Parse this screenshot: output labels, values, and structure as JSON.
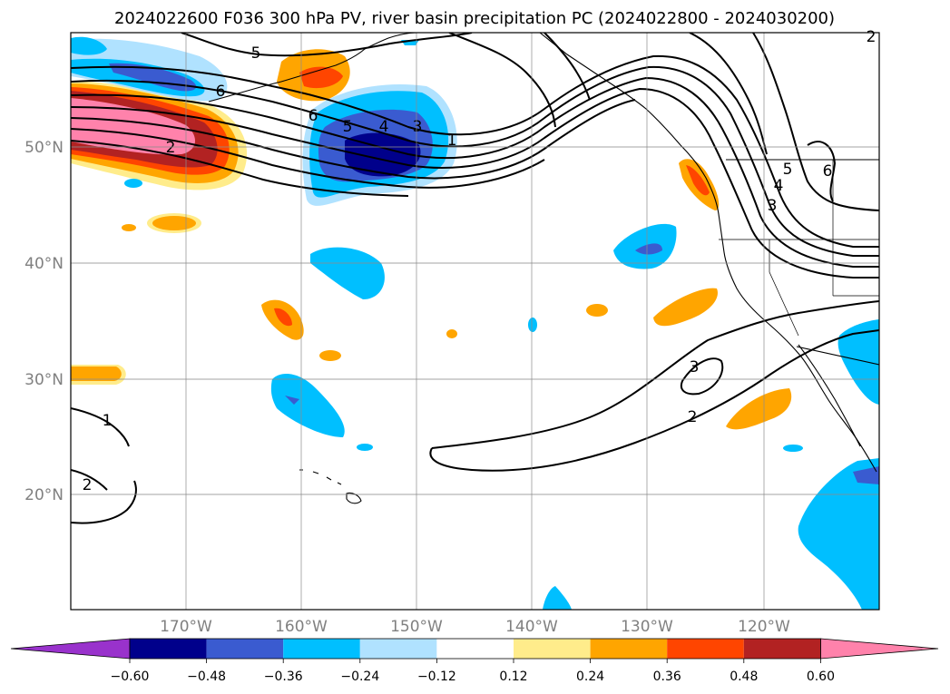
{
  "title": "2024022600 F036 300 hPa PV, river basin precipitation PC (2024022800 - 2024030200)",
  "map": {
    "lat_labels": [
      "50°N",
      "40°N",
      "30°N",
      "20°N"
    ],
    "lon_labels": [
      "170°W",
      "160°W",
      "150°W",
      "140°W",
      "130°W",
      "120°W"
    ],
    "contour_labels": [
      "5",
      "6",
      "6",
      "5",
      "4",
      "3",
      "1",
      "2",
      "2",
      "5",
      "4",
      "3",
      "6",
      "3",
      "2",
      "1",
      "2"
    ]
  },
  "colorbar": {
    "tick_labels": [
      "−0.60",
      "−0.48",
      "−0.36",
      "−0.24",
      "−0.12",
      "0.12",
      "0.24",
      "0.36",
      "0.48",
      "0.60"
    ],
    "colors": [
      "#9932cc",
      "#00008b",
      "#3a5bd0",
      "#00bfff",
      "#b0e2ff",
      "#ffffff",
      "#ffec8b",
      "#ffa500",
      "#ff4500",
      "#b22222",
      "#ff82ab"
    ]
  }
}
